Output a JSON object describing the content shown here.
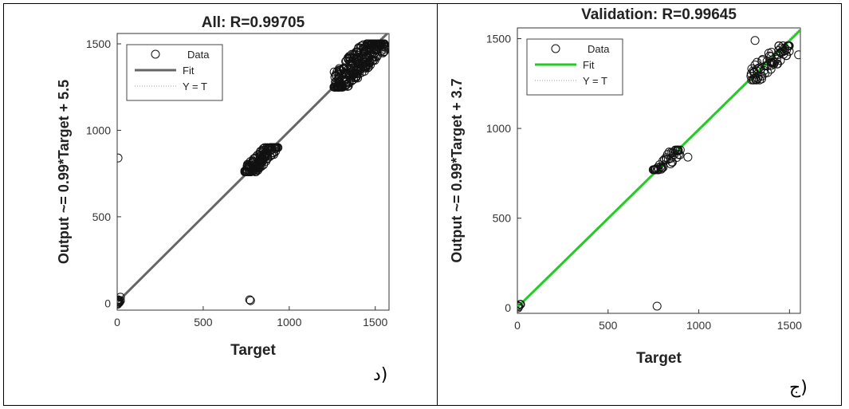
{
  "captions": {
    "left": "د)",
    "right": "ج)"
  },
  "chart_data": [
    {
      "type": "scatter",
      "title": "All: R=0.99705",
      "xlabel": "Target",
      "ylabel": "Output ~= 0.99*Target + 5.5",
      "xlim": [
        0,
        1580
      ],
      "ylim": [
        -40,
        1560
      ],
      "xticks": [
        0,
        500,
        1000,
        1500
      ],
      "yticks": [
        0,
        500,
        1000,
        1500
      ],
      "fit": {
        "slope": 0.99,
        "intercept": 5.5,
        "color": "#666666"
      },
      "legend": {
        "placement": "top-left",
        "entries": [
          "Data",
          "Fit",
          "Y = T"
        ]
      },
      "clusters": [
        {
          "x": [
            0,
            20
          ],
          "y": [
            -10,
            35
          ],
          "n": 14
        },
        {
          "x": [
            740,
            940
          ],
          "y": [
            760,
            900
          ],
          "n": 130
        },
        {
          "x": [
            1260,
            1560
          ],
          "y": [
            1250,
            1500
          ],
          "n": 260
        }
      ],
      "outliers": [
        {
          "x": 5,
          "y": 840
        },
        {
          "x": 770,
          "y": 20
        },
        {
          "x": 775,
          "y": 15
        }
      ]
    },
    {
      "type": "scatter",
      "title": "Validation: R=0.99645",
      "xlabel": "Target",
      "ylabel": "Output ~= 0.99*Target + 3.7",
      "xlim": [
        0,
        1560
      ],
      "ylim": [
        -30,
        1560
      ],
      "xticks": [
        0,
        500,
        1000,
        1500
      ],
      "yticks": [
        0,
        500,
        1000,
        1500
      ],
      "fit": {
        "slope": 0.99,
        "intercept": 3.7,
        "color": "#22cc22"
      },
      "legend": {
        "placement": "top-left",
        "entries": [
          "Data",
          "Fit",
          "Y = T"
        ]
      },
      "clusters": [
        {
          "x": [
            0,
            20
          ],
          "y": [
            -5,
            20
          ],
          "n": 6
        },
        {
          "x": [
            740,
            900
          ],
          "y": [
            770,
            880
          ],
          "n": 45
        },
        {
          "x": [
            1280,
            1500
          ],
          "y": [
            1270,
            1460
          ],
          "n": 70
        }
      ],
      "outliers": [
        {
          "x": 770,
          "y": 10
        },
        {
          "x": 1310,
          "y": 1490
        },
        {
          "x": 1550,
          "y": 1410
        },
        {
          "x": 940,
          "y": 840
        }
      ]
    }
  ]
}
